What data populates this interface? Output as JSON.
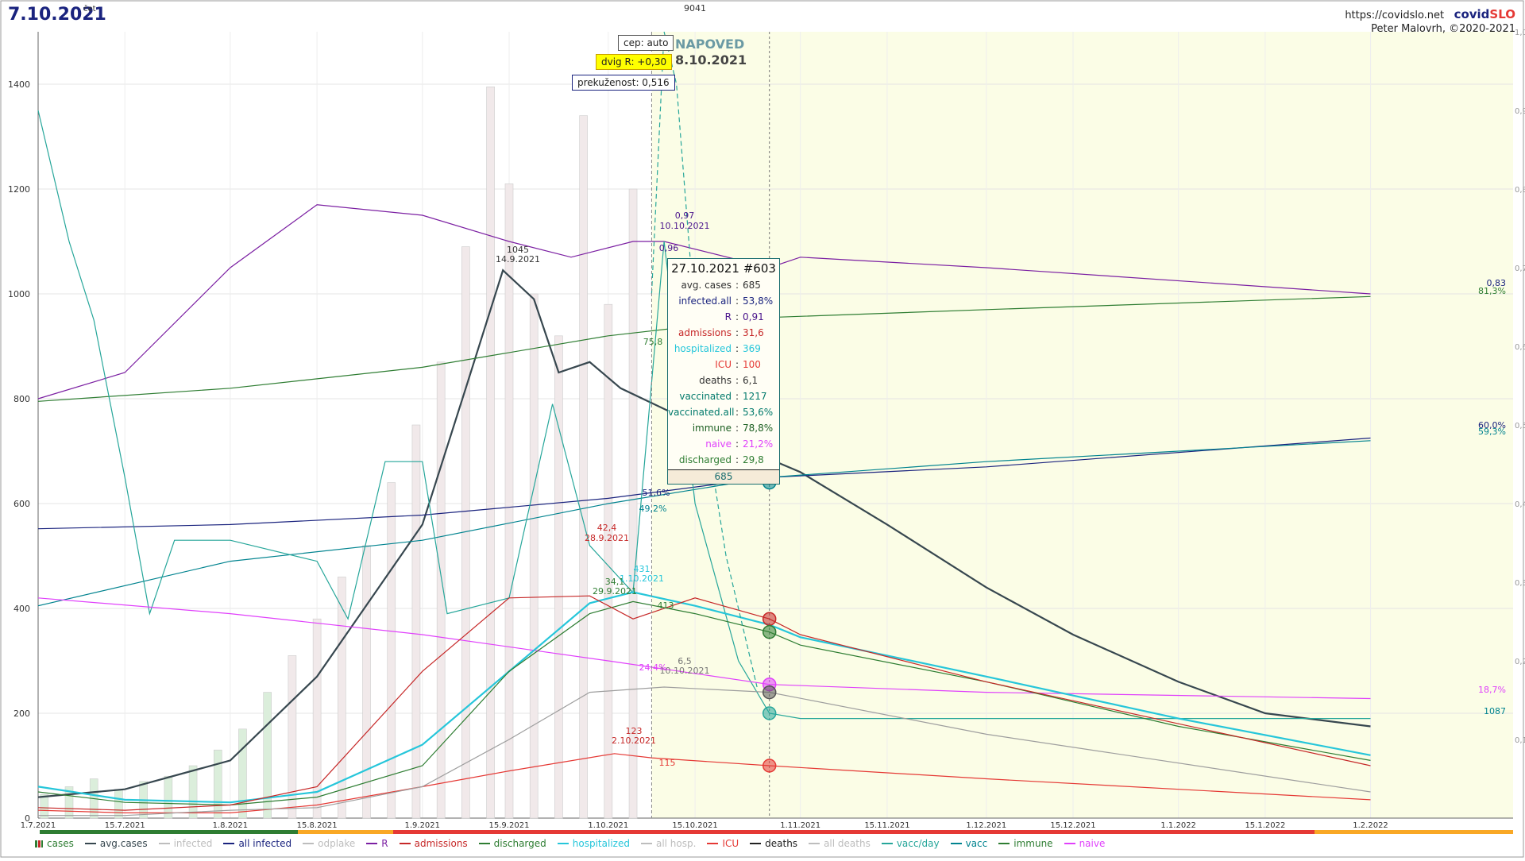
{
  "header": {
    "date": "7.10.2021",
    "weekday": "čet",
    "url": "https://covidslo.net",
    "brand_a": "covid",
    "brand_b": "SLO",
    "author": "Peter Malovrh, ©2020-2021"
  },
  "controls": {
    "cep": "cep: auto",
    "dvig": "dvig R: +0,30",
    "prekuzenost": "prekuženost: 0,516"
  },
  "forecast": {
    "title": "NAPOVED",
    "date": "8.10.2021"
  },
  "tooltip": {
    "title": "27.10.2021 #603",
    "rows": [
      {
        "label": "avg. cases",
        "value": "685",
        "color": "#333333"
      },
      {
        "label": "infected.all",
        "value": "53,8%",
        "color": "#1a237e"
      },
      {
        "label": "R",
        "value": "0,91",
        "color": "#4a148c"
      },
      {
        "label": "admissions",
        "value": "31,6",
        "color": "#c62828"
      },
      {
        "label": "hospitalized",
        "value": "369",
        "color": "#26c6da"
      },
      {
        "label": "ICU",
        "value": "100",
        "color": "#e53935"
      },
      {
        "label": "deaths",
        "value": "6,1",
        "color": "#333333"
      },
      {
        "label": "vaccinated",
        "value": "1217",
        "color": "#00796b"
      },
      {
        "label": "vaccinated.all",
        "value": "53,6%",
        "color": "#00796b"
      },
      {
        "label": "immune",
        "value": "78,8%",
        "color": "#1b5e20"
      },
      {
        "label": "naive",
        "value": "21,2%",
        "color": "#e040fb"
      },
      {
        "label": "discharged",
        "value": "29,8",
        "color": "#2e7d32"
      }
    ],
    "footer": "685"
  },
  "legend": [
    {
      "label": "cases",
      "color": "#2e7d32",
      "kind": "bar"
    },
    {
      "label": "avg.cases",
      "color": "#37474f"
    },
    {
      "label": "infected",
      "color": "#bdbdbd"
    },
    {
      "label": "all infected",
      "color": "#1a237e"
    },
    {
      "label": "odplake",
      "color": "#bdbdbd"
    },
    {
      "label": "R",
      "color": "#7b1fa2"
    },
    {
      "label": "admissions",
      "color": "#c62828"
    },
    {
      "label": "discharged",
      "color": "#2e7d32"
    },
    {
      "label": "hospitalized",
      "color": "#26c6da"
    },
    {
      "label": "all hosp.",
      "color": "#bdbdbd"
    },
    {
      "label": "ICU",
      "color": "#e53935"
    },
    {
      "label": "deaths",
      "color": "#212121"
    },
    {
      "label": "all deaths",
      "color": "#bdbdbd"
    },
    {
      "label": "vacc/day",
      "color": "#26a69a"
    },
    {
      "label": "vacc",
      "color": "#00838f"
    },
    {
      "label": "immune",
      "color": "#2e7d32"
    },
    {
      "label": "naive",
      "color": "#e040fb"
    }
  ],
  "chart_data": {
    "type": "line",
    "x_ticks": [
      "1.7.2021",
      "15.7.2021",
      "1.8.2021",
      "15.8.2021",
      "1.9.2021",
      "15.9.2021",
      "1.10.2021",
      "15.10.2021",
      "1.11.2021",
      "15.11.2021",
      "1.12.2021",
      "15.12.2021",
      "1.1.2022",
      "15.1.2022",
      "1.2.2022"
    ],
    "y_left": {
      "ticks": [
        0,
        200,
        400,
        600,
        800,
        1000,
        1200,
        1400
      ],
      "ylim": [
        0,
        1500
      ]
    },
    "y_right": {
      "ticks": [
        "0,1",
        "0,2",
        "0,3",
        "0,4",
        "0,5",
        "0,6",
        "0,7",
        "0,8",
        "0,9",
        "1,0"
      ],
      "ylim": [
        0,
        1.0
      ]
    },
    "bars_cases": [
      {
        "x": "2.7.2021",
        "y": 45
      },
      {
        "x": "6.7.2021",
        "y": 60
      },
      {
        "x": "10.7.2021",
        "y": 75
      },
      {
        "x": "14.7.2021",
        "y": 55
      },
      {
        "x": "18.7.2021",
        "y": 70
      },
      {
        "x": "22.7.2021",
        "y": 80
      },
      {
        "x": "26.7.2021",
        "y": 100
      },
      {
        "x": "30.7.2021",
        "y": 130
      },
      {
        "x": "3.8.2021",
        "y": 170
      },
      {
        "x": "7.8.2021",
        "y": 240
      },
      {
        "x": "11.8.2021",
        "y": 310
      },
      {
        "x": "15.8.2021",
        "y": 380
      },
      {
        "x": "19.8.2021",
        "y": 460
      },
      {
        "x": "23.8.2021",
        "y": 520
      },
      {
        "x": "27.8.2021",
        "y": 640
      },
      {
        "x": "31.8.2021",
        "y": 750
      },
      {
        "x": "4.9.2021",
        "y": 870
      },
      {
        "x": "8.9.2021",
        "y": 1090
      },
      {
        "x": "12.9.2021",
        "y": 1395
      },
      {
        "x": "15.9.2021",
        "y": 1210
      },
      {
        "x": "19.9.2021",
        "y": 1000
      },
      {
        "x": "23.9.2021",
        "y": 920
      },
      {
        "x": "27.9.2021",
        "y": 1340
      },
      {
        "x": "1.10.2021",
        "y": 980
      },
      {
        "x": "5.10.2021",
        "y": 1200
      }
    ],
    "series": [
      {
        "name": "avg.cases",
        "color": "#37474f",
        "points": [
          [
            "1.7.2021",
            40
          ],
          [
            "15.7.2021",
            55
          ],
          [
            "1.8.2021",
            110
          ],
          [
            "15.8.2021",
            270
          ],
          [
            "1.9.2021",
            560
          ],
          [
            "8.9.2021",
            820
          ],
          [
            "14.9.2021",
            1045
          ],
          [
            "19.9.2021",
            990
          ],
          [
            "23.9.2021",
            850
          ],
          [
            "28.9.2021",
            870
          ],
          [
            "3.10.2021",
            820
          ],
          [
            "27.10.2021",
            685
          ],
          [
            "1.11.2021",
            660
          ],
          [
            "15.11.2021",
            560
          ],
          [
            "1.12.2021",
            440
          ],
          [
            "15.12.2021",
            350
          ],
          [
            "1.1.2022",
            260
          ],
          [
            "15.1.2022",
            200
          ],
          [
            "1.2.2022",
            175
          ]
        ]
      },
      {
        "name": "all infected",
        "color": "#1a237e",
        "points": [
          [
            "1.7.2021",
            552
          ],
          [
            "1.8.2021",
            560
          ],
          [
            "1.9.2021",
            578
          ],
          [
            "1.10.2021",
            610
          ],
          [
            "27.10.2021",
            650
          ],
          [
            "1.12.2021",
            670
          ],
          [
            "1.2.2022",
            725
          ]
        ]
      },
      {
        "name": "R",
        "color": "#7b1fa2",
        "points": [
          [
            "1.7.2021",
            800
          ],
          [
            "15.7.2021",
            850
          ],
          [
            "1.8.2021",
            1050
          ],
          [
            "15.8.2021",
            1170
          ],
          [
            "1.9.2021",
            1150
          ],
          [
            "15.9.2021",
            1100
          ],
          [
            "25.9.2021",
            1070
          ],
          [
            "5.10.2021",
            1100
          ],
          [
            "10.10.2021",
            1100
          ],
          [
            "27.10.2021",
            1050
          ],
          [
            "1.11.2021",
            1070
          ],
          [
            "1.12.2021",
            1050
          ],
          [
            "1.2.2022",
            1000
          ]
        ]
      },
      {
        "name": "immune",
        "color": "#2e7d32",
        "points": [
          [
            "1.7.2021",
            795
          ],
          [
            "1.8.2021",
            820
          ],
          [
            "1.9.2021",
            860
          ],
          [
            "1.10.2021",
            920
          ],
          [
            "27.10.2021",
            955
          ],
          [
            "1.12.2021",
            970
          ],
          [
            "1.2.2022",
            995
          ]
        ]
      },
      {
        "name": "vacc",
        "color": "#00838f",
        "points": [
          [
            "1.7.2021",
            405
          ],
          [
            "1.8.2021",
            490
          ],
          [
            "1.9.2021",
            530
          ],
          [
            "1.10.2021",
            600
          ],
          [
            "27.10.2021",
            650
          ],
          [
            "1.12.2021",
            680
          ],
          [
            "1.2.2022",
            720
          ]
        ]
      },
      {
        "name": "vacc/day",
        "color": "#26a69a",
        "points": [
          [
            "1.7.2021",
            1350
          ],
          [
            "6.7.2021",
            1100
          ],
          [
            "10.7.2021",
            950
          ],
          [
            "15.7.2021",
            650
          ],
          [
            "19.7.2021",
            390
          ],
          [
            "23.7.2021",
            530
          ],
          [
            "1.8.2021",
            530
          ],
          [
            "15.8.2021",
            490
          ],
          [
            "20.8.2021",
            380
          ],
          [
            "26.8.2021",
            680
          ],
          [
            "1.9.2021",
            680
          ],
          [
            "5.9.2021",
            390
          ],
          [
            "15.9.2021",
            420
          ],
          [
            "22.9.2021",
            790
          ],
          [
            "28.9.2021",
            520
          ],
          [
            "5.10.2021",
            430
          ],
          [
            "10.10.2021",
            1100
          ],
          [
            "15.10.2021",
            600
          ],
          [
            "22.10.2021",
            300
          ],
          [
            "27.10.2021",
            200
          ],
          [
            "1.11.2021",
            190
          ],
          [
            "1.2.2022",
            190
          ]
        ]
      },
      {
        "name": "naive",
        "color": "#e040fb",
        "points": [
          [
            "1.7.2021",
            420
          ],
          [
            "1.8.2021",
            390
          ],
          [
            "1.9.2021",
            350
          ],
          [
            "1.10.2021",
            300
          ],
          [
            "27.10.2021",
            255
          ],
          [
            "1.12.2021",
            240
          ],
          [
            "1.2.2022",
            228
          ]
        ]
      },
      {
        "name": "hospitalized",
        "color": "#26c6da",
        "points": [
          [
            "1.7.2021",
            60
          ],
          [
            "15.7.2021",
            35
          ],
          [
            "1.8.2021",
            30
          ],
          [
            "15.8.2021",
            50
          ],
          [
            "1.9.2021",
            140
          ],
          [
            "15.9.2021",
            280
          ],
          [
            "28.9.2021",
            410
          ],
          [
            "5.10.2021",
            431
          ],
          [
            "15.10.2021",
            405
          ],
          [
            "27.10.2021",
            369
          ],
          [
            "1.11.2021",
            345
          ],
          [
            "1.12.2021",
            270
          ],
          [
            "1.1.2022",
            190
          ],
          [
            "1.2.2022",
            120
          ]
        ]
      },
      {
        "name": "discharged",
        "color": "#2e7d32",
        "points": [
          [
            "1.7.2021",
            50
          ],
          [
            "15.7.2021",
            30
          ],
          [
            "1.8.2021",
            25
          ],
          [
            "15.8.2021",
            40
          ],
          [
            "1.9.2021",
            100
          ],
          [
            "15.9.2021",
            280
          ],
          [
            "28.9.2021",
            390
          ],
          [
            "5.10.2021",
            413
          ],
          [
            "15.10.2021",
            390
          ],
          [
            "27.10.2021",
            355
          ],
          [
            "1.11.2021",
            330
          ],
          [
            "1.12.2021",
            260
          ],
          [
            "1.1.2022",
            175
          ],
          [
            "1.2.2022",
            110
          ]
        ]
      },
      {
        "name": "admissions",
        "color": "#c62828",
        "points": [
          [
            "1.7.2021",
            20
          ],
          [
            "15.7.2021",
            15
          ],
          [
            "1.8.2021",
            25
          ],
          [
            "15.8.2021",
            60
          ],
          [
            "1.9.2021",
            280
          ],
          [
            "15.9.2021",
            420
          ],
          [
            "28.9.2021",
            424
          ],
          [
            "5.10.2021",
            380
          ],
          [
            "15.10.2021",
            420
          ],
          [
            "27.10.2021",
            380
          ],
          [
            "1.11.2021",
            350
          ],
          [
            "1.12.2021",
            260
          ],
          [
            "1.1.2022",
            180
          ],
          [
            "1.2.2022",
            100
          ]
        ]
      },
      {
        "name": "ICU",
        "color": "#e53935",
        "points": [
          [
            "1.7.2021",
            15
          ],
          [
            "15.7.2021",
            10
          ],
          [
            "1.8.2021",
            10
          ],
          [
            "15.8.2021",
            25
          ],
          [
            "1.9.2021",
            60
          ],
          [
            "15.9.2021",
            90
          ],
          [
            "2.10.2021",
            123
          ],
          [
            "8.10.2021",
            115
          ],
          [
            "27.10.2021",
            100
          ],
          [
            "1.12.2021",
            75
          ],
          [
            "1.2.2022",
            35
          ]
        ]
      },
      {
        "name": "deaths",
        "color": "#9e9e9e",
        "points": [
          [
            "1.7.2021",
            5
          ],
          [
            "15.7.2021",
            5
          ],
          [
            "1.8.2021",
            15
          ],
          [
            "15.8.2021",
            20
          ],
          [
            "1.9.2021",
            60
          ],
          [
            "15.9.2021",
            150
          ],
          [
            "28.9.2021",
            240
          ],
          [
            "10.10.2021",
            250
          ],
          [
            "27.10.2021",
            240
          ],
          [
            "1.12.2021",
            160
          ],
          [
            "1.2.2022",
            50
          ]
        ]
      },
      {
        "name": "forecast cases",
        "color": "#26a69a",
        "points": [
          [
            "8.10.2021",
            1000
          ],
          [
            "10.10.2021",
            1500
          ],
          [
            "12.10.2021",
            1400
          ],
          [
            "16.10.2021",
            800
          ],
          [
            "20.10.2021",
            500
          ],
          [
            "25.10.2021",
            250
          ]
        ]
      }
    ],
    "annotations": [
      {
        "text": "9041"
      },
      {
        "text": "1045"
      },
      {
        "text": "14.9.2021"
      },
      {
        "text": "0,97"
      },
      {
        "text": "10.10.2021"
      },
      {
        "text": "0,96"
      },
      {
        "text": "42,4"
      },
      {
        "text": "28.9.2021"
      },
      {
        "text": "34,1"
      },
      {
        "text": "29.9.2021"
      },
      {
        "text": "431"
      },
      {
        "text": "1.10.2021"
      },
      {
        "text": "413"
      },
      {
        "text": "6,5"
      },
      {
        "text": "10.10.2021"
      },
      {
        "text": "123"
      },
      {
        "text": "2.10.2021"
      },
      {
        "text": "115"
      },
      {
        "text": "51,6%"
      },
      {
        "text": "49,2%"
      },
      {
        "text": "75,8"
      },
      {
        "text": "24,4%"
      },
      {
        "text": "0,83"
      },
      {
        "text": "81,3%"
      },
      {
        "text": "60,0%"
      },
      {
        "text": "59,3%"
      },
      {
        "text": "18,7%"
      },
      {
        "text": "1087"
      }
    ],
    "grid": true,
    "forecast_from": "8.10.2021"
  }
}
